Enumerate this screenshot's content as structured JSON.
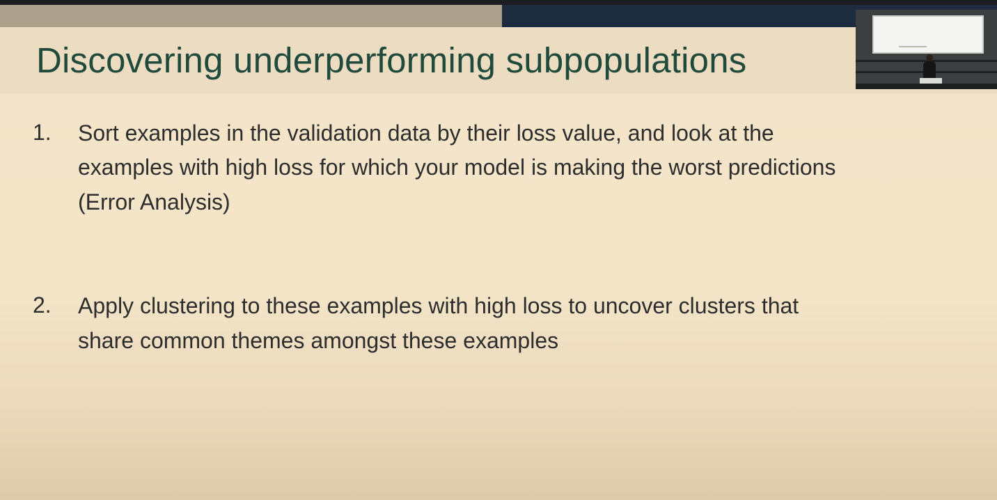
{
  "slide": {
    "title": "Discovering underperforming subpopulations",
    "items": [
      {
        "number": "1.",
        "lines": [
          "Sort examples in the validation data by their loss value, and look at the",
          "examples with high loss for which your model is making the worst predictions",
          "(Error Analysis)"
        ]
      },
      {
        "number": "2.",
        "lines": [
          "Apply clustering to these examples with high loss to uncover clusters that",
          "share common themes amongst these examples"
        ]
      }
    ]
  },
  "colors": {
    "title": "#1f4a3c",
    "body_text": "#2d2d2d",
    "slide_background": "#f5e6cb",
    "top_bar_left": "#aca08c",
    "top_bar_right": "#1d2b3e"
  },
  "icons": {
    "speaker_thumbnail": "lecture-hall-camera-feed"
  }
}
